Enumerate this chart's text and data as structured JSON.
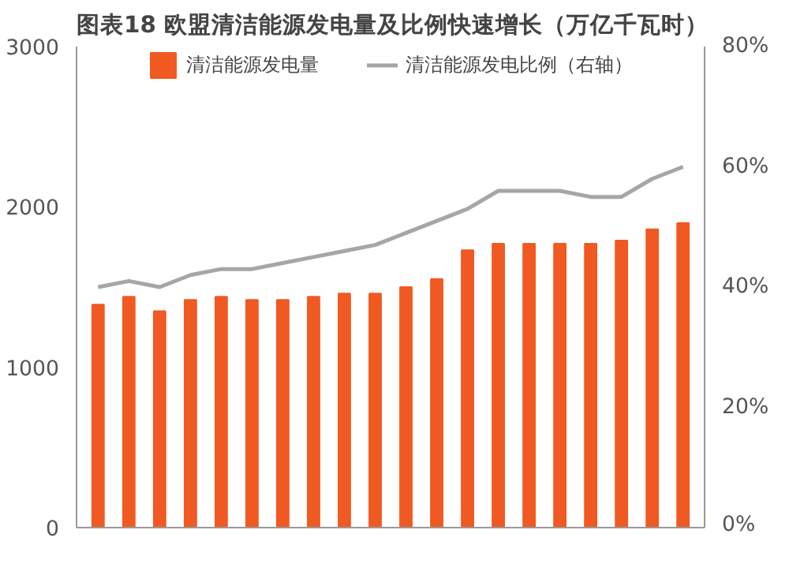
{
  "chart_data": {
    "type": "bar",
    "title": "图表18    欧盟清洁能源发电量及比例快速增长（万亿千瓦时）",
    "categories": [
      null,
      null,
      null,
      null,
      null,
      null,
      null,
      null,
      null,
      null,
      null,
      null,
      null,
      null,
      null,
      null,
      null,
      null,
      null,
      null
    ],
    "series": [
      {
        "name": "清洁能源发电量",
        "color": "#f05a22",
        "values": [
          1390,
          1440,
          1350,
          1420,
          1440,
          1420,
          1420,
          1440,
          1460,
          1460,
          1500,
          1550,
          1730,
          1770,
          1770,
          1770,
          1770,
          1790,
          1860,
          1900
        ]
      },
      {
        "name": "清洁能源发电比例（右轴）",
        "color": "#a6a6a6",
        "type": "line",
        "axis": "y2",
        "values": [
          40,
          41,
          40,
          42,
          43,
          43,
          44,
          45,
          46,
          47,
          49,
          51,
          53,
          56,
          56,
          56,
          55,
          55,
          58,
          60
        ]
      }
    ],
    "ylim": [
      0,
      3000
    ],
    "yticks": [
      0,
      1000,
      2000,
      3000
    ],
    "y2lim": [
      0,
      80
    ],
    "y2ticks": [
      {
        "value": 0,
        "label": "0%"
      },
      {
        "value": 20,
        "label": "20%"
      },
      {
        "value": 40,
        "label": "40%"
      },
      {
        "value": 60,
        "label": "60%"
      },
      {
        "value": 80,
        "label": "80%"
      }
    ],
    "legend": "top",
    "grid": false
  }
}
